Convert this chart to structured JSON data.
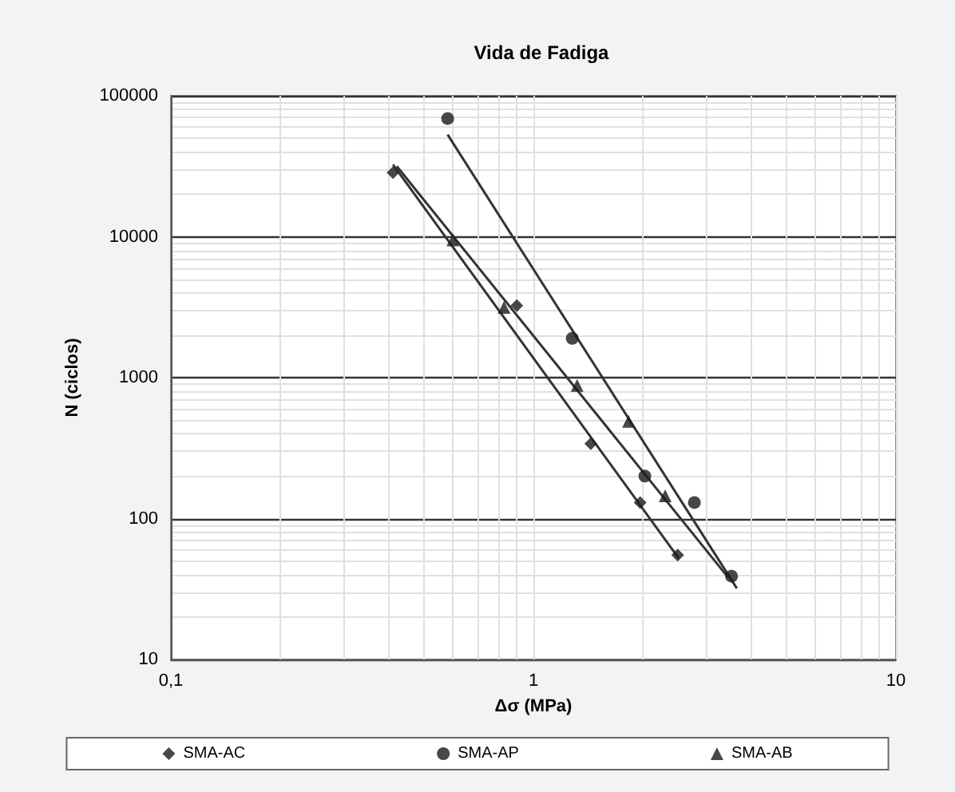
{
  "chart_data": {
    "type": "scatter",
    "title": "Vida de Fadiga",
    "xlabel": "Δσ (MPa)",
    "ylabel": "N (ciclos)",
    "log": "xy",
    "xlim": [
      0.1,
      10
    ],
    "xticks": [
      {
        "value": 0.1,
        "label": "0,1"
      },
      1,
      10
    ],
    "ylim": [
      10,
      100000
    ],
    "yticks": [
      10,
      100,
      1000,
      10000,
      100000
    ],
    "grid": true,
    "legend": "bottom",
    "series": [
      {
        "name": "SMA-AC",
        "color": "#1a1a1a",
        "marker": "diamond",
        "x": [
          0.41,
          0.9,
          1.44,
          1.97,
          2.5
        ],
        "values": [
          28500,
          3250,
          340,
          130,
          55
        ]
      },
      {
        "name": "SMA-AP",
        "color": "#1a1a1a",
        "marker": "circle",
        "x": [
          0.58,
          1.28,
          2.03,
          2.78,
          3.52
        ],
        "values": [
          69000,
          1900,
          200,
          130,
          39
        ]
      },
      {
        "name": "SMA-AB",
        "color": "#1a1a1a",
        "marker": "triangle",
        "x": [
          0.6,
          0.83,
          1.32,
          1.83,
          2.31
        ],
        "values": [
          9500,
          3150,
          880,
          490,
          145
        ]
      },
      {
        "type": "line",
        "color": "#333333",
        "marker": "none",
        "x": [
          0.41,
          2.52
        ],
        "values": [
          32500,
          52
        ]
      },
      {
        "type": "line",
        "color": "#333333",
        "marker": "none",
        "x": [
          0.58,
          3.64
        ],
        "values": [
          53000,
          32
        ]
      },
      {
        "type": "line",
        "color": "#333333",
        "marker": "none",
        "x": [
          0.42,
          3.45
        ],
        "values": [
          31600,
          38
        ]
      }
    ]
  }
}
